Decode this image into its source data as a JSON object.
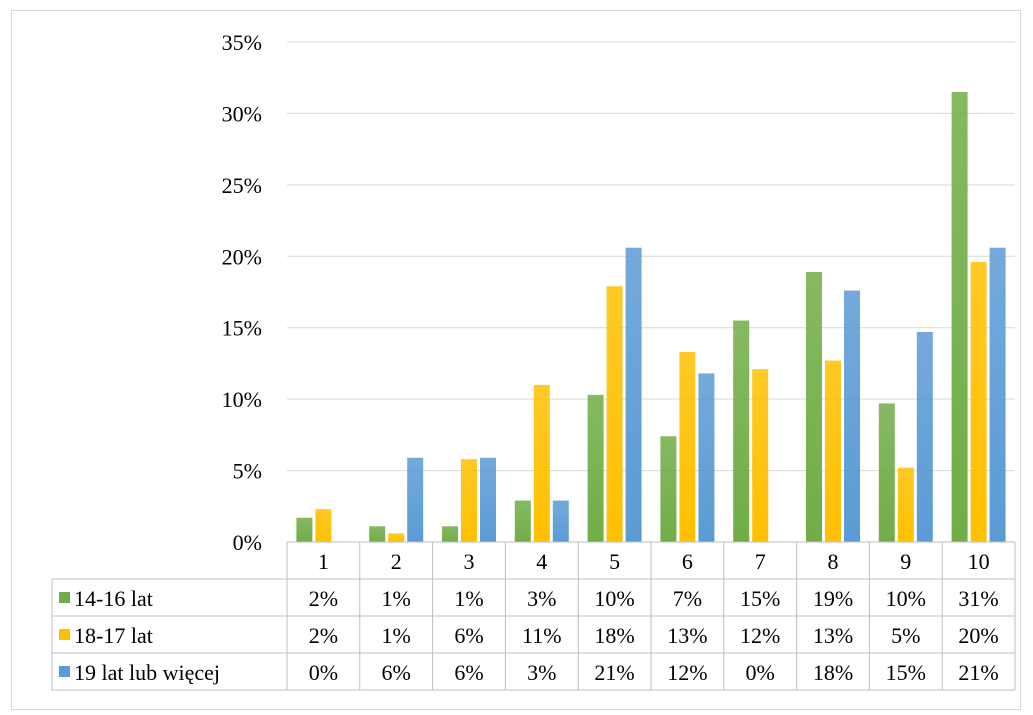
{
  "chart_data": {
    "type": "bar",
    "categories": [
      "1",
      "2",
      "3",
      "4",
      "5",
      "6",
      "7",
      "8",
      "9",
      "10"
    ],
    "series": [
      {
        "name": "14-16 lat",
        "color": "#70ad47",
        "values": [
          1.7,
          1.1,
          1.1,
          2.9,
          10.3,
          7.4,
          15.5,
          18.9,
          9.7,
          31.5
        ],
        "labels": [
          "2%",
          "1%",
          "1%",
          "3%",
          "10%",
          "7%",
          "15%",
          "19%",
          "10%",
          "31%"
        ]
      },
      {
        "name": "18-17 lat",
        "color": "#ffc000",
        "values": [
          2.3,
          0.6,
          5.8,
          11.0,
          17.9,
          13.3,
          12.1,
          12.7,
          5.2,
          19.6
        ],
        "labels": [
          "2%",
          "1%",
          "6%",
          "11%",
          "18%",
          "13%",
          "12%",
          "13%",
          "5%",
          "20%"
        ]
      },
      {
        "name": "19 lat lub więcej",
        "color": "#5b9bd5",
        "values": [
          0,
          5.9,
          5.9,
          2.9,
          20.6,
          11.8,
          0,
          17.6,
          14.7,
          20.6
        ],
        "labels": [
          "0%",
          "6%",
          "6%",
          "3%",
          "21%",
          "12%",
          "0%",
          "18%",
          "15%",
          "21%"
        ]
      }
    ],
    "y_ticks": [
      "0%",
      "5%",
      "10%",
      "15%",
      "20%",
      "25%",
      "30%",
      "35%"
    ],
    "ylim": [
      0,
      35
    ],
    "grid": true,
    "legend": "data-table"
  }
}
